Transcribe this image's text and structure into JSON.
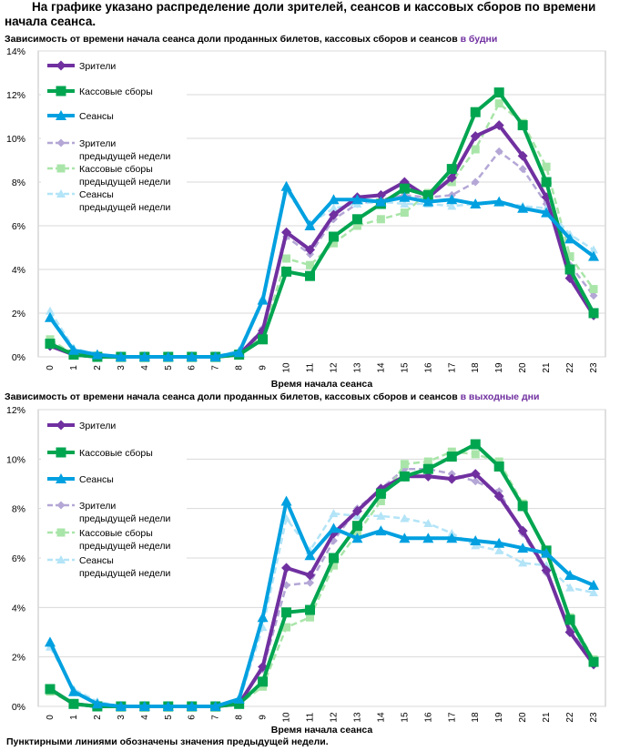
{
  "page": {
    "title": "На графике указано распределение доли зрителей, сеансов и кассовых сборов по времени начала сеанса.",
    "footnote": "Пунктирными линиями обозначены значения предыдущей недели."
  },
  "colors": {
    "viewers": "#7030a0",
    "revenue": "#00a550",
    "sessions": "#00a0e0",
    "viewers_prev": "#b4a7d6",
    "revenue_prev": "#a9e5a9",
    "sessions_prev": "#b3e4f7",
    "grid": "#d9d9d9"
  },
  "chart_data": [
    {
      "type": "line",
      "title_main": "Зависимость от времени начала сеанса доли проданных билетов, кассовых сборов и сеансов ",
      "title_accent": "в будни",
      "xlabel": "Время начала сеанса",
      "ylabel": "",
      "ylim": [
        0,
        14
      ],
      "yticks": [
        0,
        2,
        4,
        6,
        8,
        10,
        12,
        14
      ],
      "ytick_labels": [
        "0%",
        "2%",
        "4%",
        "6%",
        "8%",
        "10%",
        "12%",
        "14%"
      ],
      "categories": [
        "0",
        "1",
        "2",
        "3",
        "4",
        "5",
        "6",
        "7",
        "8",
        "9",
        "10",
        "11",
        "12",
        "13",
        "14",
        "15",
        "16",
        "17",
        "18",
        "19",
        "20",
        "21",
        "22",
        "23"
      ],
      "grid": true,
      "legend_position": "top-left",
      "series": [
        {
          "name": "Зрители",
          "line1": "Зрители",
          "line2": "",
          "key": "viewers",
          "dashed": false,
          "marker": "diamond",
          "values": [
            0.5,
            0.1,
            0,
            0,
            0,
            0,
            0,
            0,
            0.1,
            1.2,
            5.7,
            4.9,
            6.5,
            7.3,
            7.4,
            8.0,
            7.3,
            8.2,
            10.1,
            10.6,
            9.2,
            7.3,
            3.6,
            1.9
          ]
        },
        {
          "name": "Кассовые сборы",
          "line1": "Кассовые сборы",
          "line2": "",
          "key": "revenue",
          "dashed": false,
          "marker": "square",
          "values": [
            0.6,
            0.1,
            0,
            0,
            0,
            0,
            0,
            0,
            0.1,
            0.8,
            3.9,
            3.7,
            5.5,
            6.3,
            7.0,
            7.7,
            7.4,
            8.6,
            11.2,
            12.1,
            10.6,
            8.0,
            4.0,
            2.0
          ]
        },
        {
          "name": "Сеансы",
          "line1": "Сеансы",
          "line2": "",
          "key": "sessions",
          "dashed": false,
          "marker": "triangle",
          "values": [
            1.8,
            0.3,
            0.1,
            0,
            0,
            0,
            0,
            0,
            0.2,
            2.6,
            7.8,
            6.0,
            7.2,
            7.2,
            7.1,
            7.3,
            7.1,
            7.2,
            7.0,
            7.1,
            6.8,
            6.6,
            5.4,
            4.6
          ]
        },
        {
          "name": "Зрители предыдущей недели",
          "line1": "Зрители",
          "line2": "предыдущей недели",
          "key": "viewers_prev",
          "dashed": true,
          "marker": "diamond",
          "values": [
            0.7,
            0.1,
            0,
            0,
            0,
            0,
            0,
            0,
            0.1,
            1.3,
            5.5,
            4.7,
            6.3,
            7.0,
            7.2,
            7.4,
            7.3,
            7.4,
            8.0,
            9.4,
            8.6,
            7.0,
            4.2,
            2.8
          ]
        },
        {
          "name": "Кассовые сборы предыдущей недели",
          "line1": "Кассовые сборы",
          "line2": "предыдущей недели",
          "key": "revenue_prev",
          "dashed": true,
          "marker": "square",
          "values": [
            0.8,
            0.1,
            0,
            0,
            0,
            0,
            0,
            0,
            0.1,
            1.0,
            4.5,
            4.2,
            5.2,
            6.0,
            6.3,
            6.6,
            7.5,
            8.0,
            9.5,
            11.6,
            10.7,
            8.7,
            4.6,
            3.1
          ]
        },
        {
          "name": "Сеансы предыдущей недели",
          "line1": "Сеансы",
          "line2": "предыдущей недели",
          "key": "sessions_prev",
          "dashed": true,
          "marker": "triangle",
          "values": [
            2.1,
            0.4,
            0.1,
            0,
            0,
            0,
            0,
            0,
            0.3,
            2.7,
            7.6,
            6.1,
            6.8,
            7.0,
            7.1,
            7.0,
            7.0,
            6.9,
            7.0,
            7.1,
            6.9,
            6.8,
            5.6,
            4.9
          ]
        }
      ]
    },
    {
      "type": "line",
      "title_main": "Зависимость от времени начала сеанса доли проданных билетов, кассовых сборов и сеансов ",
      "title_accent": "в выходные дни",
      "xlabel": "Время начала сеанса",
      "ylabel": "",
      "ylim": [
        0,
        12
      ],
      "yticks": [
        0,
        2,
        4,
        6,
        8,
        10,
        12
      ],
      "ytick_labels": [
        "0%",
        "2%",
        "4%",
        "6%",
        "8%",
        "10%",
        "12%"
      ],
      "categories": [
        "0",
        "1",
        "2",
        "3",
        "4",
        "5",
        "6",
        "7",
        "8",
        "9",
        "10",
        "11",
        "12",
        "13",
        "14",
        "15",
        "16",
        "17",
        "18",
        "19",
        "20",
        "21",
        "22",
        "23"
      ],
      "grid": true,
      "legend_position": "top-left",
      "series": [
        {
          "name": "Зрители",
          "line1": "Зрители",
          "line2": "",
          "key": "viewers",
          "dashed": false,
          "marker": "diamond",
          "values": [
            0.7,
            0.1,
            0,
            0,
            0,
            0,
            0,
            0,
            0.1,
            1.6,
            5.6,
            5.3,
            7.0,
            7.9,
            8.8,
            9.3,
            9.3,
            9.2,
            9.4,
            8.5,
            7.1,
            5.5,
            3.0,
            1.7
          ]
        },
        {
          "name": "Кассовые сборы",
          "line1": "Кассовые сборы",
          "line2": "",
          "key": "revenue",
          "dashed": false,
          "marker": "square",
          "values": [
            0.7,
            0.1,
            0,
            0,
            0,
            0,
            0,
            0,
            0.1,
            1.0,
            3.8,
            3.9,
            6.0,
            7.3,
            8.6,
            9.3,
            9.6,
            10.1,
            10.6,
            9.7,
            8.1,
            6.3,
            3.5,
            1.8
          ]
        },
        {
          "name": "Сеансы",
          "line1": "Сеансы",
          "line2": "",
          "key": "sessions",
          "dashed": false,
          "marker": "triangle",
          "values": [
            2.6,
            0.6,
            0.1,
            0,
            0,
            0,
            0,
            0,
            0.3,
            3.6,
            8.3,
            6.1,
            7.2,
            6.8,
            7.1,
            6.8,
            6.8,
            6.8,
            6.7,
            6.6,
            6.4,
            6.2,
            5.3,
            4.9
          ]
        },
        {
          "name": "Зрители предыдущей недели",
          "line1": "Зрители",
          "line2": "предыдущей недели",
          "key": "viewers_prev",
          "dashed": true,
          "marker": "diamond",
          "values": [
            0.7,
            0.1,
            0,
            0,
            0,
            0,
            0,
            0,
            0.1,
            1.5,
            4.9,
            5.0,
            6.7,
            8.0,
            8.8,
            9.6,
            9.6,
            9.4,
            9.1,
            8.7,
            7.0,
            5.4,
            3.1,
            1.8
          ]
        },
        {
          "name": "Кассовые сборы предыдущей недели",
          "line1": "Кассовые сборы",
          "line2": "предыдущей недели",
          "key": "revenue_prev",
          "dashed": true,
          "marker": "square",
          "values": [
            0.6,
            0.1,
            0,
            0,
            0,
            0,
            0,
            0,
            0.1,
            0.8,
            3.2,
            3.6,
            5.7,
            7.0,
            8.3,
            9.8,
            9.9,
            10.3,
            10.2,
            9.9,
            8.2,
            6.3,
            3.6,
            1.9
          ]
        },
        {
          "name": "Сеансы предыдущей недели",
          "line1": "Сеансы",
          "line2": "предыдущей недели",
          "key": "sessions_prev",
          "dashed": true,
          "marker": "triangle",
          "values": [
            2.4,
            0.7,
            0.2,
            0,
            0,
            0,
            0,
            0,
            0.2,
            3.2,
            7.6,
            6.3,
            7.8,
            7.7,
            7.7,
            7.6,
            7.4,
            7.0,
            6.5,
            6.3,
            5.8,
            5.7,
            4.8,
            4.6
          ]
        }
      ]
    }
  ]
}
